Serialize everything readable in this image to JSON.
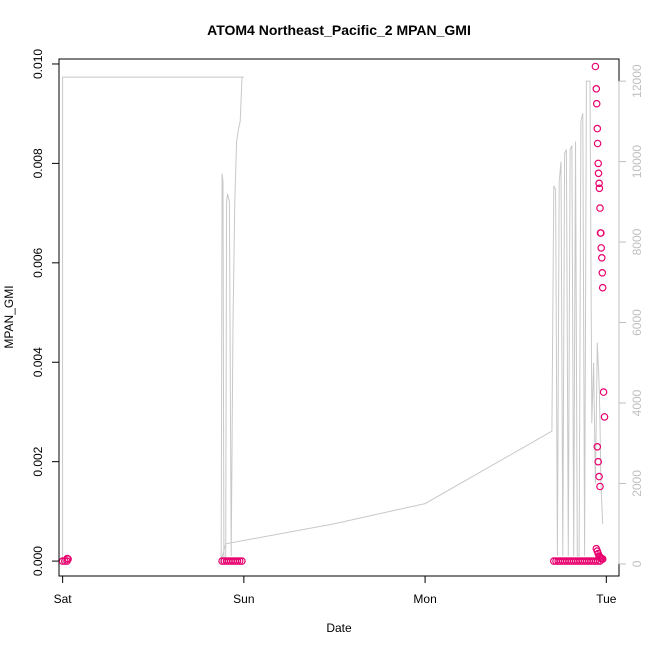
{
  "chart_data": {
    "type": "scatter",
    "title": "ATOM4 Northeast_Pacific_2 MPAN_GMI",
    "xlabel": "Date",
    "ylabel": "MPAN_GMI",
    "x_ticks": [
      "Sat",
      "Sun",
      "Mon",
      "Tue"
    ],
    "xlim": [
      -0.02,
      3.07
    ],
    "ylim": [
      -0.0003,
      0.0101
    ],
    "y_ticks": [
      0.0,
      0.002,
      0.004,
      0.006,
      0.008,
      0.01
    ],
    "y_tick_labels": [
      "0.000",
      "0.002",
      "0.004",
      "0.006",
      "0.008",
      "0.010"
    ],
    "y2lim": [
      -300,
      12550
    ],
    "y2_ticks": [
      0,
      2000,
      4000,
      6000,
      8000,
      10000,
      12000
    ],
    "y2_tick_labels": [
      "0",
      "2000",
      "4000",
      "6000",
      "8000",
      "10000",
      "12000"
    ],
    "colors": {
      "points": "#e8006e",
      "altitude_line": "#c8c8c8",
      "right_axis": "#bfbfbf"
    },
    "altitude_series": {
      "x": [
        0.0,
        0.0,
        0.0,
        0.02,
        0.03,
        0.04,
        0.05,
        0.45,
        0.9,
        0.95,
        0.98,
        0.99,
        1.0,
        0.99,
        0.98,
        0.97,
        0.96,
        0.95,
        0.94,
        0.93,
        0.92,
        0.91,
        0.905,
        0.9,
        0.89,
        0.885,
        0.88,
        0.875,
        0.87,
        0.87,
        0.9,
        1.5,
        2.0,
        2.7,
        2.71,
        2.72,
        2.73,
        2.74,
        2.75,
        2.76,
        2.77,
        2.78,
        2.79,
        2.8,
        2.81,
        2.82,
        2.83,
        2.84,
        2.85,
        2.86,
        2.87,
        2.88,
        2.89,
        2.9,
        2.91,
        2.92,
        2.93,
        2.94,
        2.95,
        2.96,
        2.965,
        2.97,
        2.975,
        2.98
      ],
      "y": [
        0,
        12000,
        12100,
        12100,
        12100,
        12100,
        12100,
        12100,
        12100,
        12100,
        12100,
        12100,
        12100,
        12100,
        11000,
        10800,
        10500,
        9000,
        6000,
        200,
        9000,
        9200,
        9000,
        200,
        0,
        9500,
        9700,
        200,
        0,
        0,
        500,
        1000,
        1500,
        3300,
        9400,
        9300,
        200,
        9500,
        10000,
        200,
        10200,
        10300,
        200,
        10300,
        10400,
        200,
        10500,
        200,
        200,
        11000,
        11200,
        200,
        12000,
        12000,
        12000,
        3500,
        5000,
        2000,
        5500,
        4500,
        3500,
        2000,
        1500,
        1000
      ]
    },
    "dense_flat_series": [
      {
        "name": "",
        "x_start": 0.0,
        "x_end": 0.03,
        "y": 0.0
      },
      {
        "name": "",
        "x_start": 0.88,
        "x_end": 1.0,
        "y": 0.0
      },
      {
        "name": "",
        "x_start": 2.71,
        "x_end": 2.97,
        "y": 0.0
      }
    ],
    "points": {
      "x": [
        0.025,
        0.03,
        2.94,
        2.945,
        2.947,
        2.95,
        2.952,
        2.955,
        2.957,
        2.96,
        2.962,
        2.965,
        2.968,
        2.97,
        2.972,
        2.975,
        2.978,
        2.98,
        2.985,
        2.99,
        2.95,
        2.955,
        2.96,
        2.965
      ],
      "y": [
        5e-05,
        4e-05,
        0.00995,
        0.0095,
        0.0092,
        0.0087,
        0.0084,
        0.008,
        0.0078,
        0.0076,
        0.0075,
        0.0071,
        0.0066,
        0.0066,
        0.0063,
        0.0061,
        0.0058,
        0.0055,
        0.0034,
        0.0029,
        0.0023,
        0.002,
        0.0017,
        0.0015
      ]
    },
    "points_low": {
      "x": [
        2.945,
        2.95,
        2.955,
        2.96,
        2.965,
        2.97,
        2.975,
        2.98
      ],
      "y": [
        0.00025,
        0.0002,
        0.00015,
        0.0001,
        8e-05,
        6e-05,
        5e-05,
        4e-05
      ]
    },
    "grid": false,
    "legend": "none"
  }
}
